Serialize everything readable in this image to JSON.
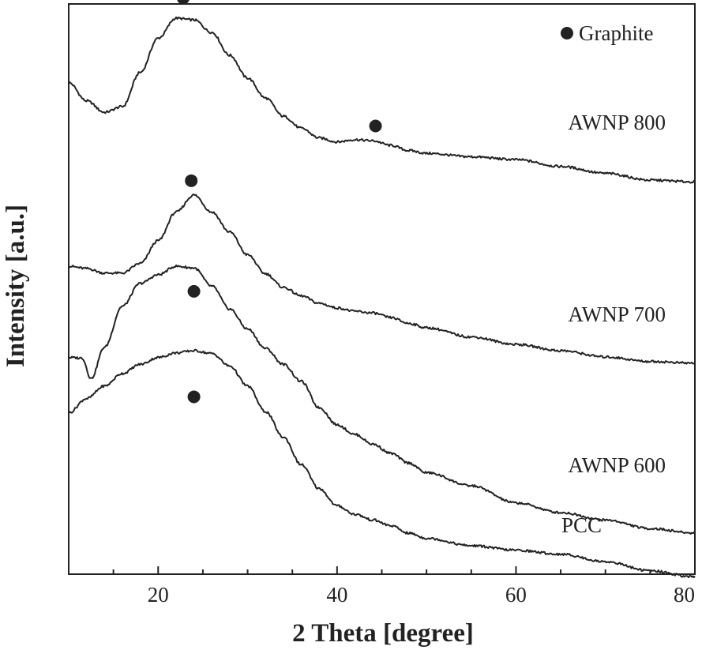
{
  "chart_data": {
    "type": "line",
    "title": "",
    "xlabel": "2 Theta [degree]",
    "ylabel": "Intensity [a.u.]",
    "xlim": [
      10,
      80
    ],
    "xticks": [
      20,
      40,
      60,
      80
    ],
    "y_tick_labels": "none",
    "grid": false,
    "legend": {
      "marker": "filled-circle",
      "label": "Graphite",
      "placement": "top-right"
    },
    "colors": {
      "line": "#222222",
      "marker": "#222222",
      "axis": "#222222",
      "text": "#222222"
    },
    "series": [
      {
        "name": "AWNP 800",
        "x": [
          10,
          12,
          14,
          16,
          18,
          20,
          22,
          24,
          26,
          28,
          30,
          32,
          34,
          36,
          38,
          40,
          42,
          44,
          46,
          48,
          50,
          55,
          60,
          65,
          70,
          75,
          80
        ],
        "y": [
          0.862,
          0.83,
          0.81,
          0.82,
          0.88,
          0.94,
          0.975,
          0.972,
          0.95,
          0.91,
          0.87,
          0.835,
          0.803,
          0.782,
          0.765,
          0.758,
          0.762,
          0.76,
          0.752,
          0.743,
          0.738,
          0.732,
          0.727,
          0.715,
          0.703,
          0.691,
          0.688
        ]
      },
      {
        "name": "AWNP 700",
        "x": [
          10,
          12,
          14,
          16,
          18,
          20,
          22,
          24,
          26,
          28,
          30,
          32,
          34,
          36,
          38,
          40,
          42,
          44,
          46,
          48,
          50,
          55,
          60,
          65,
          70,
          75,
          80
        ],
        "y": [
          0.54,
          0.536,
          0.528,
          0.528,
          0.545,
          0.585,
          0.635,
          0.665,
          0.635,
          0.6,
          0.56,
          0.527,
          0.503,
          0.488,
          0.475,
          0.467,
          0.461,
          0.458,
          0.45,
          0.44,
          0.432,
          0.416,
          0.403,
          0.392,
          0.381,
          0.373,
          0.37
        ]
      },
      {
        "name": "AWNP 600",
        "x": [
          10,
          11.5,
          12.5,
          14,
          16,
          18,
          20,
          22,
          24,
          26,
          28,
          30,
          32,
          34,
          36,
          38,
          40,
          42,
          44,
          46,
          48,
          50,
          55,
          60,
          65,
          70,
          75,
          80
        ],
        "y": [
          0.38,
          0.379,
          0.343,
          0.398,
          0.47,
          0.51,
          0.525,
          0.54,
          0.537,
          0.505,
          0.465,
          0.43,
          0.396,
          0.368,
          0.338,
          0.292,
          0.262,
          0.245,
          0.228,
          0.212,
          0.195,
          0.178,
          0.155,
          0.125,
          0.108,
          0.095,
          0.08,
          0.072
        ]
      },
      {
        "name": "PCC",
        "x": [
          10,
          12,
          14,
          16,
          18,
          20,
          22,
          24,
          26,
          28,
          30,
          32,
          34,
          36,
          38,
          40,
          42,
          44,
          46,
          48,
          50,
          55,
          60,
          65,
          70,
          75,
          80
        ],
        "y": [
          0.283,
          0.308,
          0.33,
          0.352,
          0.368,
          0.38,
          0.388,
          0.392,
          0.387,
          0.365,
          0.33,
          0.285,
          0.24,
          0.192,
          0.15,
          0.12,
          0.105,
          0.095,
          0.085,
          0.072,
          0.063,
          0.05,
          0.042,
          0.035,
          0.022,
          0.006,
          -0.005
        ]
      }
    ],
    "graphite_markers": [
      {
        "series": "AWNP 800",
        "x": 22.8,
        "y": 1.01
      },
      {
        "series": "AWNP 800",
        "x": 44.3,
        "y": 0.786
      },
      {
        "series": "AWNP 700",
        "x": 23.7,
        "y": 0.69
      },
      {
        "series": "AWNP 700",
        "x": 24.0,
        "y": 0.496
      },
      {
        "series": "AWNP 600",
        "x": 24.0,
        "y": 0.311
      }
    ]
  }
}
